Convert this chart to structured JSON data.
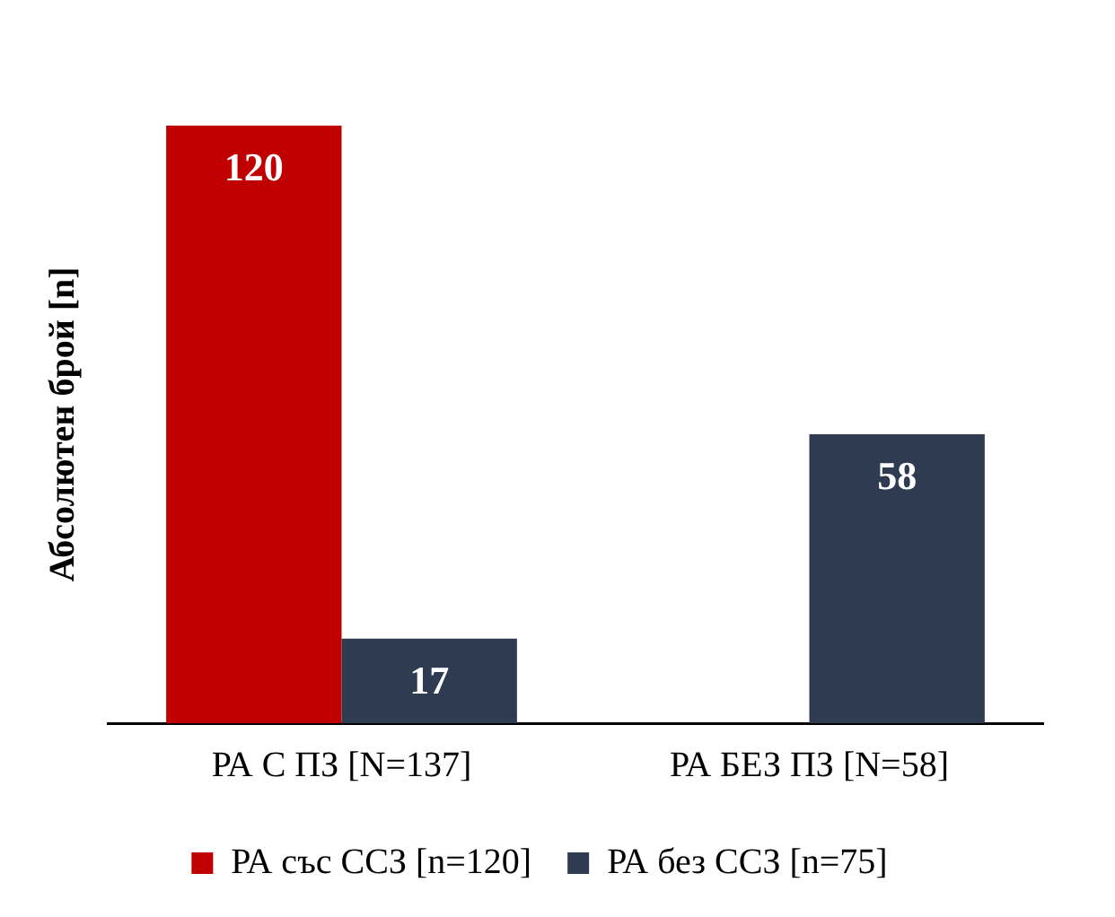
{
  "chart_data": {
    "type": "bar",
    "ylabel": "Абсолютен брой [n]",
    "categories": [
      "РА С ПЗ [N=137]",
      "РА БЕЗ ПЗ [N=58]"
    ],
    "series": [
      {
        "name": "РА със ССЗ [n=120]",
        "color": "#c00000",
        "values": [
          120,
          null
        ]
      },
      {
        "name": "РА без ССЗ [n=75]",
        "color": "#2e3b50",
        "values": [
          17,
          58
        ]
      }
    ],
    "data_labels": true,
    "legend": "bottom",
    "grid": false
  }
}
